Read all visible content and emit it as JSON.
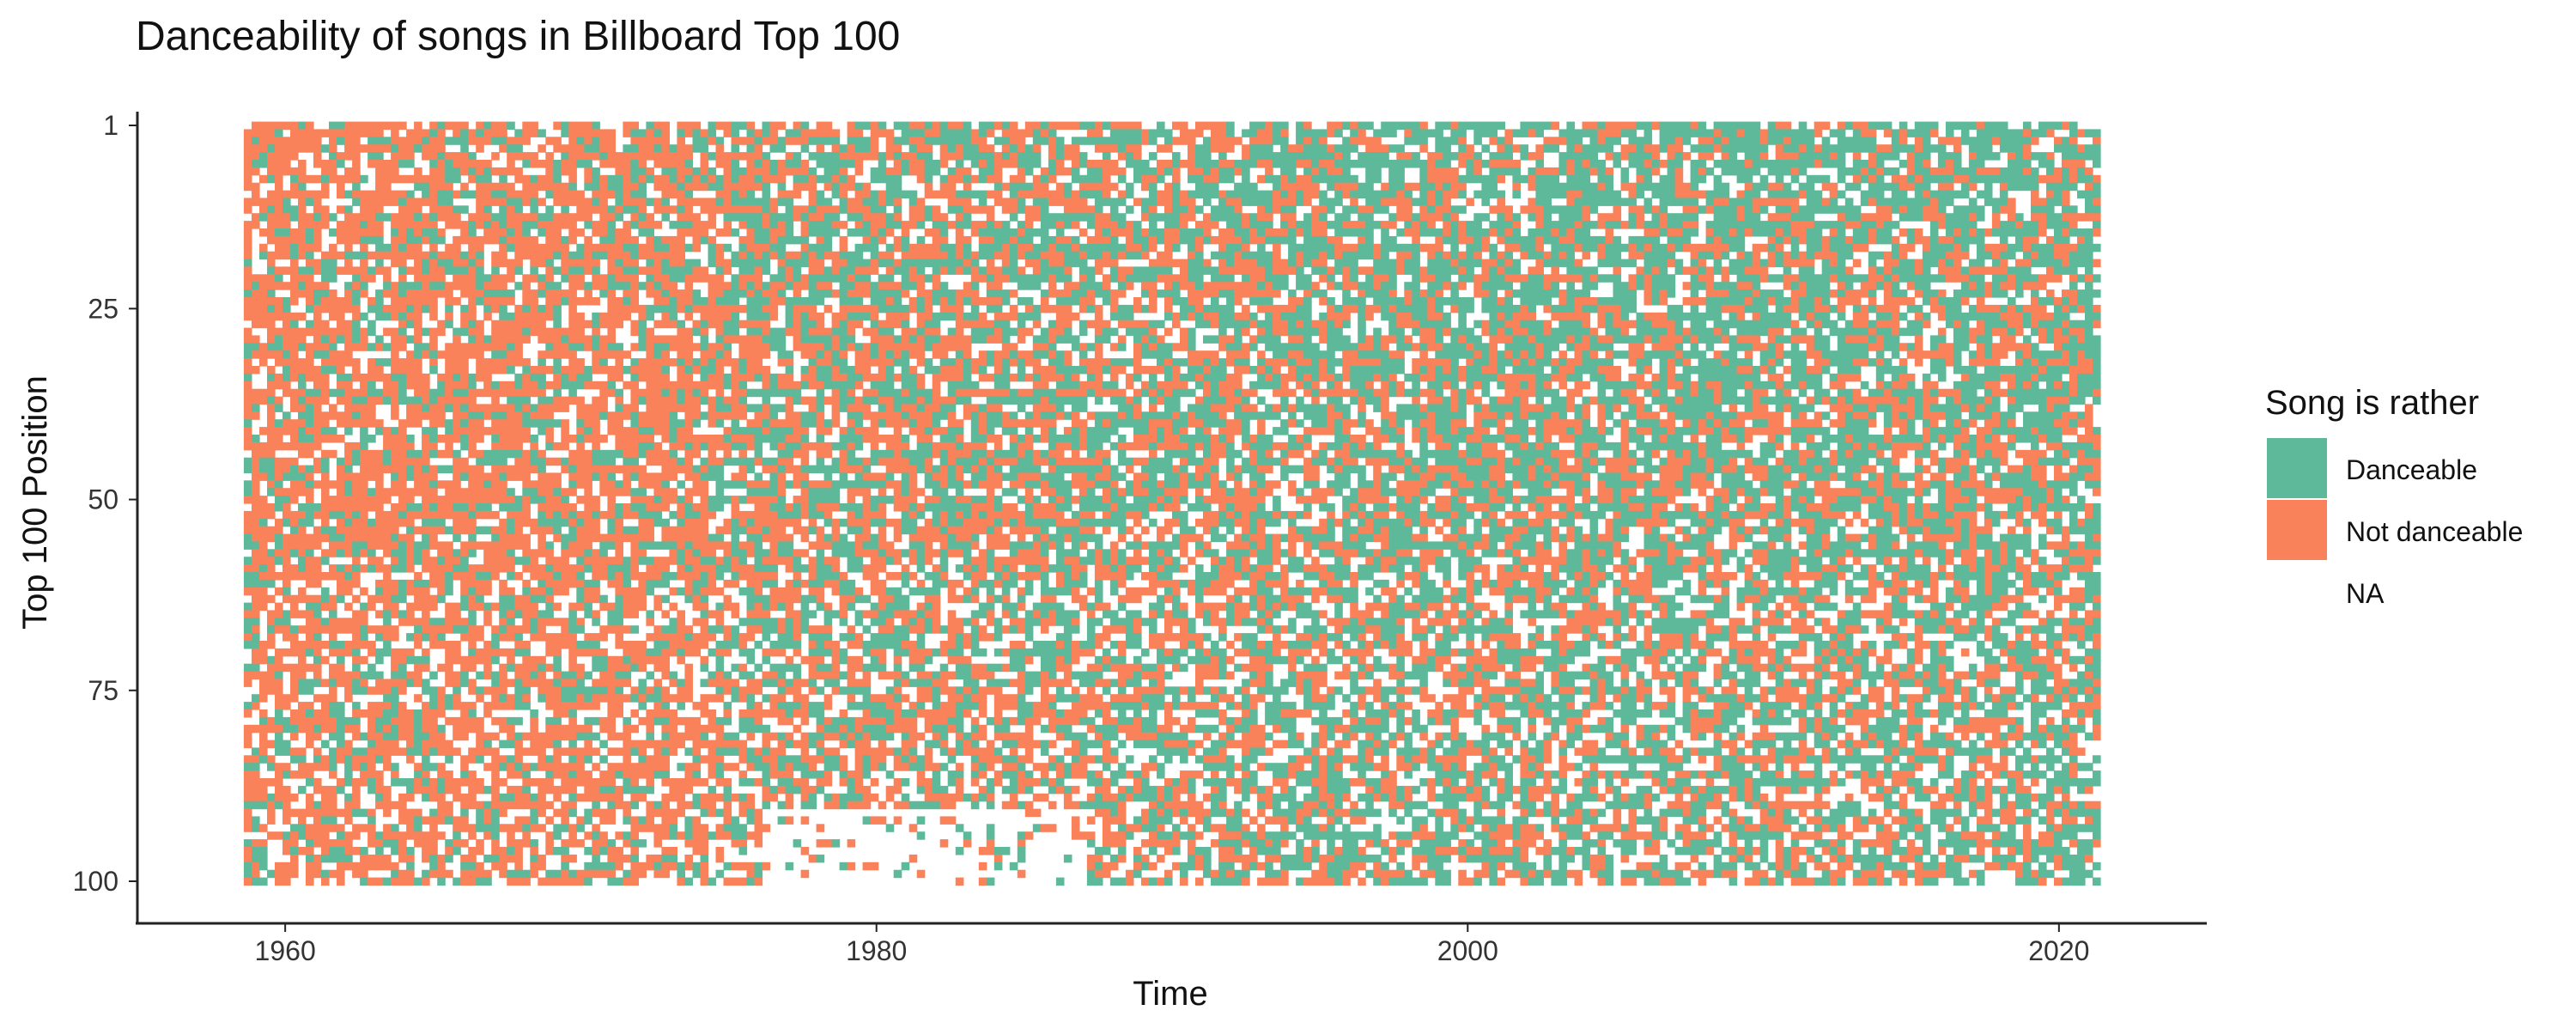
{
  "chart_data": {
    "type": "heatmap",
    "title": "Danceability of songs in Billboard Top 100",
    "xlabel": "Time",
    "ylabel": "Top 100 Position",
    "xlim": [
      1955,
      2025
    ],
    "x_ticks": [
      1960,
      1980,
      2000,
      2020
    ],
    "y_range": [
      1,
      100
    ],
    "y_ticks": [
      1,
      25,
      50,
      75,
      100
    ],
    "y_reversed": true,
    "time_start": 1958.6,
    "time_end": 2021.4,
    "legend": {
      "title": "Song is rather",
      "position": "right",
      "entries": [
        {
          "label": "Danceable",
          "color": "#5DB999"
        },
        {
          "label": "Not danceable",
          "color": "#F9825A"
        },
        {
          "label": "NA",
          "color": "#ffffff"
        }
      ]
    },
    "categories": [
      "Danceable",
      "Not danceable",
      "NA"
    ],
    "colors": {
      "danceable": "#5DB999",
      "not_danceable": "#F9825A",
      "na": "#ffffff"
    },
    "grid": false,
    "approx_danceable_share_by_period": [
      {
        "period": "1958-1965",
        "top_ranks": 0.25,
        "lower_ranks": 0.3
      },
      {
        "period": "1965-1975",
        "top_ranks": 0.3,
        "lower_ranks": 0.3
      },
      {
        "period": "1975-1985",
        "top_ranks": 0.5,
        "lower_ranks": 0.45
      },
      {
        "period": "1985-1995",
        "top_ranks": 0.55,
        "lower_ranks": 0.5
      },
      {
        "period": "1995-2005",
        "top_ranks": 0.7,
        "lower_ranks": 0.55
      },
      {
        "period": "2005-2021",
        "top_ranks": 0.72,
        "lower_ranks": 0.55
      }
    ]
  }
}
